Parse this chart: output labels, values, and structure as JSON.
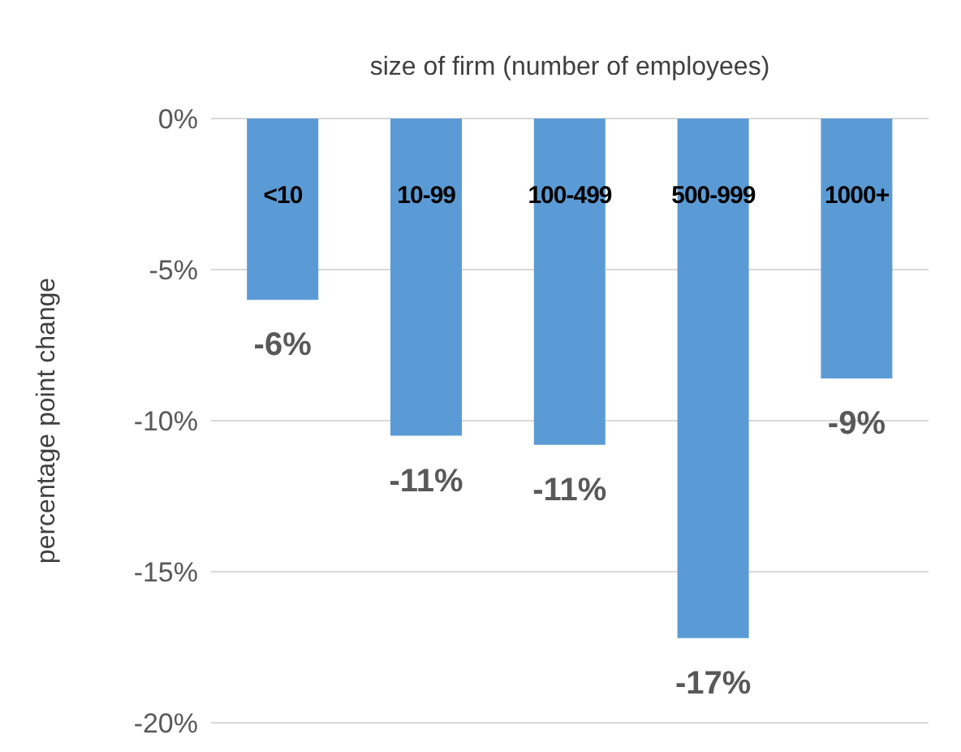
{
  "chart_data": {
    "type": "bar",
    "xlabel": "size of firm  (number of employees)",
    "ylabel": "percentage  point change",
    "categories": [
      "<10",
      "10-99",
      "100-499",
      "500-999",
      "1000+"
    ],
    "values": [
      -6.0,
      -10.5,
      -10.8,
      -17.2,
      -8.6
    ],
    "value_labels": [
      "-6%",
      "-11%",
      "-11%",
      "-17%",
      "-9%"
    ],
    "color": "#5b9bd5",
    "ylim": [
      -20,
      0
    ],
    "yticks": [
      {
        "value": 0,
        "label": "0%"
      },
      {
        "value": -5,
        "label": "-5%"
      },
      {
        "value": -10,
        "label": "-10%"
      },
      {
        "value": -15,
        "label": "-15%"
      },
      {
        "value": -20,
        "label": "-20%"
      }
    ],
    "grid": "y"
  }
}
